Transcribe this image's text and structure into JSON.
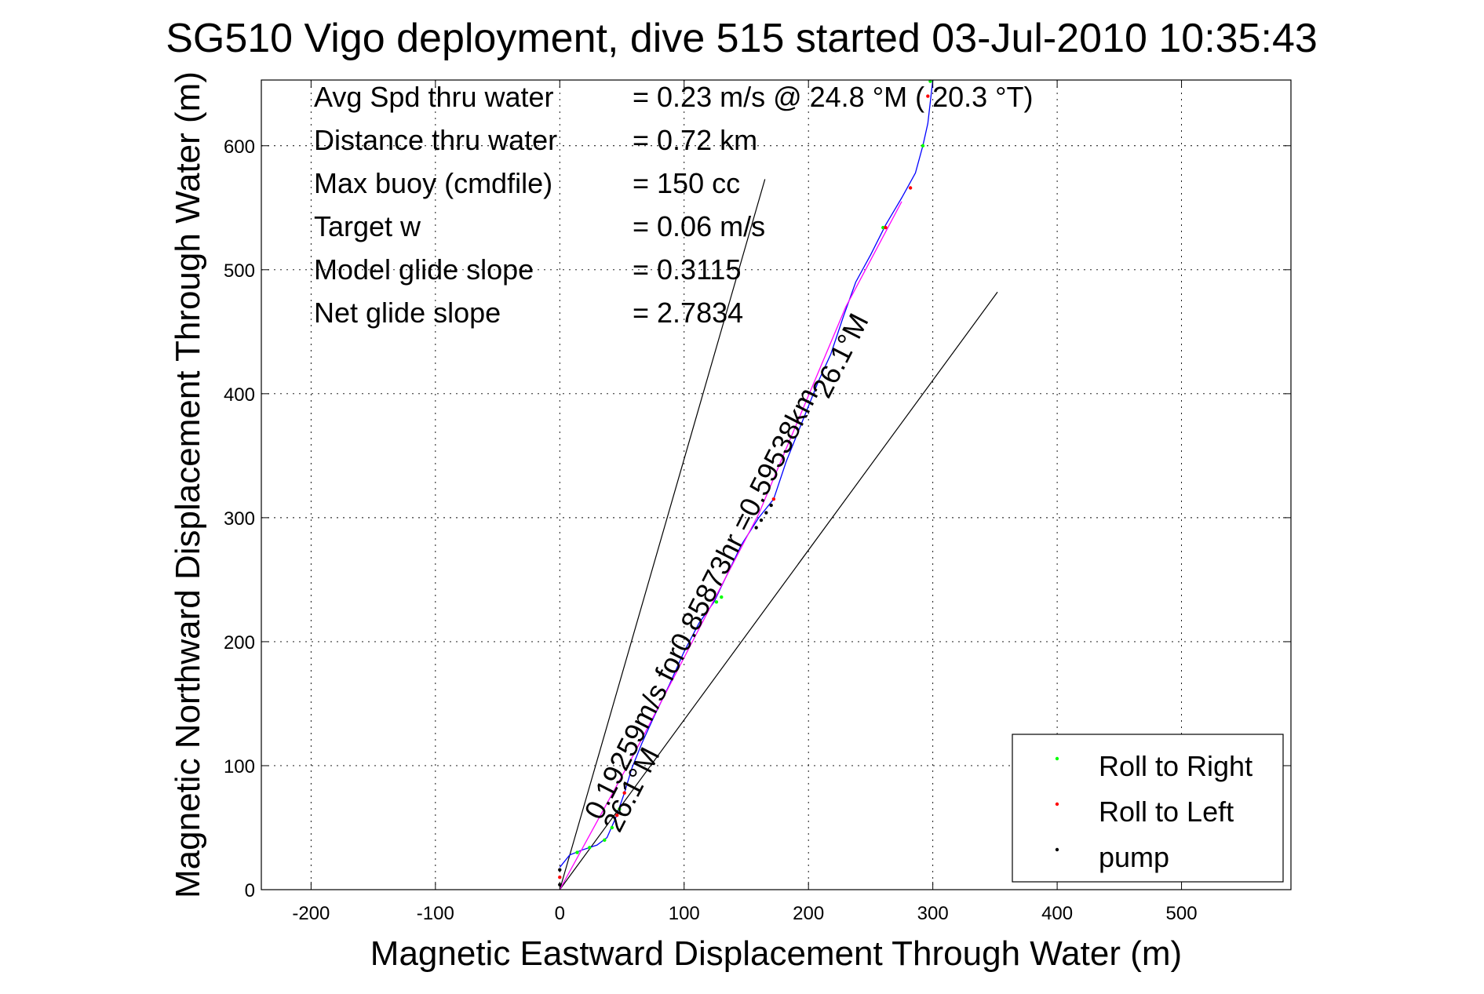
{
  "chart_data": {
    "type": "scatter",
    "title": "SG510 Vigo deployment, dive 515 started 03-Jul-2010 10:35:43",
    "xlabel": "Magnetic Eastward Displacement Through Water (m)",
    "ylabel": "Magnetic Northward Displacement Through Water (m)",
    "xlim": [
      -240,
      588
    ],
    "ylim": [
      0,
      653
    ],
    "xticks": [
      -200,
      -100,
      0,
      100,
      200,
      300,
      400,
      500
    ],
    "yticks": [
      0,
      100,
      200,
      300,
      400,
      500,
      600
    ],
    "grid": true,
    "legend_position": "bottom-right",
    "info_lines": [
      {
        "label": "Avg Spd thru water",
        "value": "=  0.23 m/s @  24.8 °M ( 20.3 °T)"
      },
      {
        "label": "Distance thru water",
        "value": "=  0.72 km"
      },
      {
        "label": "Max buoy (cmdfile)",
        "value": "= 150 cc"
      },
      {
        "label": "Target w",
        "value": "= 0.06 m/s"
      },
      {
        "label": "Model glide slope",
        "value": "= 0.3115"
      },
      {
        "label": "Net glide slope",
        "value": "= 2.7834"
      }
    ],
    "annotations": [
      {
        "text": "0.19259m/s for0.85873hr =0.59538km",
        "x": 33,
        "y": 55,
        "angle": -63
      },
      {
        "text": "26.1°M",
        "x": 216,
        "y": 395,
        "angle": -63
      },
      {
        "text": "26.1°M",
        "x": 48,
        "y": 45,
        "angle": -63
      }
    ],
    "reference_lines": [
      {
        "name": "left-cone-line",
        "color": "#000000",
        "points": [
          [
            0,
            0
          ],
          [
            165,
            573
          ]
        ]
      },
      {
        "name": "right-cone-line",
        "color": "#000000",
        "points": [
          [
            0,
            0
          ],
          [
            352,
            482
          ]
        ]
      }
    ],
    "series": [
      {
        "color": "#0000ff",
        "points": [
          [
            0,
            18
          ],
          [
            8,
            28
          ],
          [
            18,
            32
          ],
          [
            30,
            36
          ],
          [
            38,
            42
          ],
          [
            45,
            58
          ],
          [
            52,
            78
          ],
          [
            58,
            98
          ],
          [
            66,
            118
          ],
          [
            76,
            140
          ],
          [
            88,
            165
          ],
          [
            100,
            192
          ],
          [
            112,
            215
          ],
          [
            124,
            232
          ],
          [
            135,
            255
          ],
          [
            146,
            278
          ],
          [
            160,
            300
          ],
          [
            172,
            315
          ],
          [
            182,
            345
          ],
          [
            196,
            380
          ],
          [
            208,
            410
          ],
          [
            218,
            432
          ],
          [
            228,
            462
          ],
          [
            238,
            490
          ],
          [
            250,
            512
          ],
          [
            262,
            536
          ],
          [
            275,
            558
          ],
          [
            286,
            578
          ],
          [
            292,
            600
          ],
          [
            296,
            618
          ],
          [
            300,
            653
          ]
        ]
      },
      {
        "color": "#ff00ff",
        "points": [
          [
            0,
            0
          ],
          [
            60,
            110
          ],
          [
            160,
            303
          ],
          [
            230,
            470
          ],
          [
            275,
            555
          ]
        ]
      },
      {
        "name": "Roll to Right",
        "color": "#00ff00",
        "points": [
          [
            14,
            30
          ],
          [
            24,
            34
          ],
          [
            36,
            40
          ],
          [
            42,
            50
          ],
          [
            48,
            65
          ],
          [
            126,
            232
          ],
          [
            130,
            236
          ],
          [
            260,
            534
          ],
          [
            292,
            600
          ],
          [
            298,
            652
          ]
        ]
      },
      {
        "name": "Roll to Left",
        "color": "#ff0000",
        "points": [
          [
            0,
            10
          ],
          [
            46,
            60
          ],
          [
            52,
            78
          ],
          [
            172,
            315
          ],
          [
            262,
            534
          ],
          [
            282,
            566
          ],
          [
            296,
            640
          ]
        ]
      },
      {
        "name": "pump",
        "color": "#000000",
        "points": [
          [
            0,
            4
          ],
          [
            0,
            16
          ],
          [
            158,
            292
          ],
          [
            162,
            298
          ],
          [
            166,
            304
          ],
          [
            170,
            310
          ]
        ]
      }
    ]
  }
}
